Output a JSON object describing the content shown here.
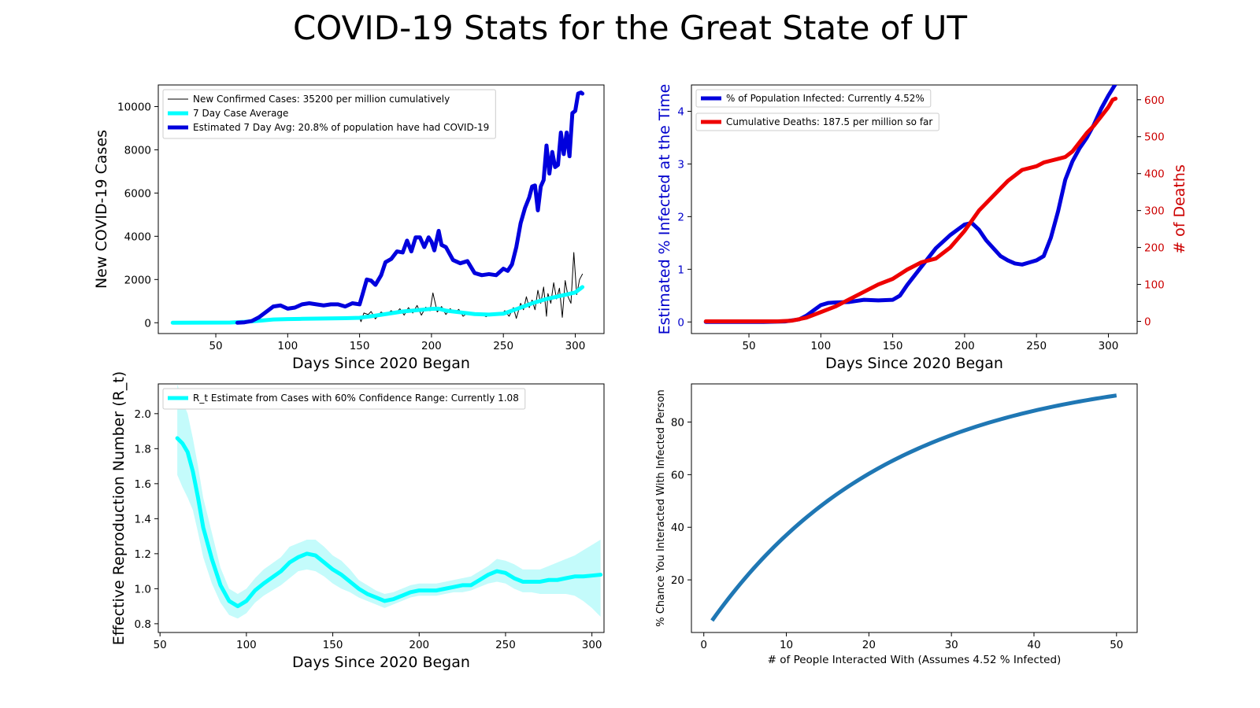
{
  "title": "COVID-19 Stats for the Great State of UT",
  "colors": {
    "blue": "#0000dd",
    "cyan": "#00ffff",
    "cyan_band": "#c4fbfb",
    "red": "#ee0000",
    "steel": "#1f77b4",
    "black": "#000000",
    "axis_blue": "#0000cc",
    "axis_red": "#cc0000"
  },
  "chart_data": [
    {
      "id": "cases",
      "type": "line",
      "xlabel": "Days Since 2020 Began",
      "ylabel": "New COVID-19 Cases",
      "xlim": [
        10,
        320
      ],
      "ylim": [
        -500,
        11000
      ],
      "xticks": [
        50,
        100,
        150,
        200,
        250,
        300
      ],
      "yticks": [
        0,
        2000,
        4000,
        6000,
        8000,
        10000
      ],
      "legend_position": "upper-left",
      "series": [
        {
          "name": "New Confirmed Cases: 35200 per million cumulatively",
          "color": "#000000",
          "width": 1,
          "x": [
            20,
            60,
            70,
            80,
            90,
            100,
            110,
            120,
            130,
            140,
            150,
            151,
            153,
            156,
            158,
            161,
            165,
            168,
            172,
            175,
            178,
            181,
            184,
            187,
            190,
            193,
            196,
            199,
            201,
            204,
            207,
            210,
            213,
            216,
            219,
            222,
            226,
            230,
            234,
            238,
            242,
            246,
            249,
            251,
            254,
            257,
            259,
            262,
            264,
            266,
            268,
            270,
            272,
            274,
            276,
            278,
            280,
            281,
            283,
            285,
            287,
            289,
            291,
            293,
            295,
            297,
            299,
            301,
            303,
            305
          ],
          "y": [
            0,
            10,
            40,
            90,
            150,
            180,
            190,
            200,
            210,
            220,
            230,
            50,
            450,
            380,
            520,
            180,
            500,
            350,
            560,
            420,
            650,
            350,
            700,
            450,
            800,
            350,
            720,
            550,
            1380,
            500,
            750,
            380,
            650,
            450,
            620,
            300,
            500,
            380,
            430,
            280,
            450,
            350,
            400,
            560,
            300,
            700,
            200,
            900,
            600,
            1200,
            700,
            1050,
            600,
            1500,
            900,
            1650,
            300,
            1350,
            900,
            1850,
            1100,
            1600,
            250,
            1950,
            1200,
            900,
            3250,
            1300,
            2000,
            2250
          ]
        },
        {
          "name": "7 Day Case Average",
          "color": "#00ffff",
          "width": 5,
          "x": [
            20,
            60,
            70,
            80,
            90,
            100,
            110,
            120,
            130,
            140,
            150,
            160,
            170,
            180,
            190,
            200,
            205,
            210,
            220,
            230,
            240,
            250,
            260,
            270,
            280,
            290,
            300,
            305
          ],
          "y": [
            0,
            10,
            40,
            90,
            150,
            170,
            180,
            190,
            200,
            210,
            230,
            320,
            420,
            520,
            580,
            640,
            650,
            560,
            480,
            400,
            380,
            420,
            650,
            900,
            1100,
            1250,
            1400,
            1650
          ]
        },
        {
          "name": "Estimated 7 Day Avg: 20.8% of population have had COVID-19",
          "color": "#0000dd",
          "width": 5,
          "x": [
            65,
            70,
            75,
            80,
            85,
            90,
            95,
            100,
            105,
            110,
            115,
            120,
            125,
            130,
            135,
            140,
            145,
            150,
            152,
            155,
            158,
            161,
            165,
            168,
            172,
            176,
            180,
            183,
            186,
            189,
            192,
            195,
            198,
            200,
            202,
            205,
            207,
            210,
            215,
            220,
            225,
            230,
            235,
            240,
            245,
            250,
            253,
            256,
            259,
            262,
            265,
            268,
            270,
            272,
            274,
            276,
            278,
            280,
            282,
            284,
            286,
            288,
            290,
            292,
            294,
            296,
            298,
            300,
            302,
            304,
            305
          ],
          "y": [
            0,
            20,
            80,
            250,
            500,
            750,
            800,
            650,
            700,
            850,
            900,
            850,
            800,
            850,
            850,
            750,
            900,
            850,
            1300,
            2000,
            1950,
            1750,
            2200,
            2800,
            2950,
            3300,
            3250,
            3800,
            3300,
            3950,
            3950,
            3500,
            3950,
            3750,
            3350,
            4250,
            3600,
            3500,
            2900,
            2750,
            2850,
            2300,
            2200,
            2250,
            2200,
            2500,
            2400,
            2700,
            3500,
            4600,
            5300,
            5800,
            6300,
            6350,
            5200,
            6300,
            6600,
            8200,
            6900,
            7900,
            7200,
            7300,
            8800,
            7800,
            8800,
            7700,
            9700,
            9800,
            10600,
            10650,
            10600
          ]
        }
      ]
    },
    {
      "id": "infected",
      "type": "line",
      "xlabel": "Days Since 2020 Began",
      "ylabel": "Estimated % Infected at the Time",
      "ylabel_right": "# of Deaths",
      "xlim": [
        10,
        320
      ],
      "ylim": [
        -0.22,
        4.5
      ],
      "ylim_right": [
        -33,
        640
      ],
      "xticks": [
        50,
        100,
        150,
        200,
        250,
        300
      ],
      "yticks": [
        0,
        1,
        2,
        3,
        4
      ],
      "yticks_right": [
        0,
        100,
        200,
        300,
        400,
        500,
        600
      ],
      "legend_position": "upper-left",
      "series": [
        {
          "name": "% of Population Infected: Currently 4.52%",
          "axis": "left",
          "color": "#0000dd",
          "width": 5,
          "x": [
            20,
            60,
            75,
            85,
            90,
            95,
            100,
            105,
            110,
            120,
            130,
            140,
            150,
            155,
            160,
            170,
            180,
            190,
            200,
            205,
            210,
            215,
            220,
            225,
            230,
            235,
            240,
            245,
            250,
            255,
            260,
            265,
            270,
            275,
            280,
            285,
            290,
            295,
            300,
            305
          ],
          "y": [
            0,
            0,
            0.01,
            0.05,
            0.12,
            0.22,
            0.32,
            0.36,
            0.37,
            0.38,
            0.42,
            0.41,
            0.42,
            0.5,
            0.7,
            1.05,
            1.4,
            1.65,
            1.85,
            1.88,
            1.75,
            1.55,
            1.4,
            1.25,
            1.17,
            1.11,
            1.09,
            1.13,
            1.17,
            1.25,
            1.6,
            2.1,
            2.7,
            3.05,
            3.3,
            3.5,
            3.75,
            4.05,
            4.3,
            4.52
          ]
        },
        {
          "name": "Cumulative Deaths: 187.5 per million so far",
          "axis": "right",
          "color": "#ee0000",
          "width": 5,
          "x": [
            20,
            60,
            70,
            80,
            90,
            100,
            110,
            120,
            130,
            140,
            150,
            160,
            170,
            180,
            190,
            200,
            210,
            220,
            230,
            240,
            250,
            255,
            260,
            265,
            270,
            275,
            280,
            285,
            290,
            295,
            300,
            303,
            305
          ],
          "y": [
            0,
            0,
            0,
            2,
            10,
            25,
            40,
            60,
            80,
            100,
            115,
            140,
            160,
            170,
            200,
            245,
            300,
            340,
            380,
            410,
            420,
            430,
            435,
            440,
            445,
            460,
            485,
            510,
            530,
            555,
            580,
            600,
            603
          ]
        }
      ]
    },
    {
      "id": "rt",
      "type": "line",
      "xlabel": "Days Since 2020 Began",
      "ylabel": "Effective Reproduction Number (R_t)",
      "xlim": [
        49,
        307
      ],
      "ylim": [
        0.75,
        2.17
      ],
      "xticks": [
        50,
        100,
        150,
        200,
        250,
        300
      ],
      "yticks": [
        0.8,
        1.0,
        1.2,
        1.4,
        1.6,
        1.8,
        2.0
      ],
      "legend_position": "upper-left",
      "series": [
        {
          "name": "R_t Estimate from Cases with 60% Confidence Range: Currently 1.08",
          "color": "#00ffff",
          "width": 5,
          "x": [
            60,
            63,
            66,
            69,
            72,
            75,
            80,
            85,
            90,
            95,
            100,
            105,
            110,
            120,
            125,
            130,
            135,
            140,
            145,
            150,
            155,
            160,
            165,
            170,
            175,
            180,
            185,
            190,
            195,
            200,
            205,
            210,
            215,
            220,
            225,
            230,
            235,
            240,
            245,
            250,
            255,
            260,
            265,
            270,
            275,
            280,
            285,
            290,
            295,
            300,
            305
          ],
          "y": [
            1.86,
            1.83,
            1.78,
            1.67,
            1.52,
            1.35,
            1.17,
            1.02,
            0.93,
            0.9,
            0.93,
            0.99,
            1.03,
            1.1,
            1.15,
            1.18,
            1.2,
            1.19,
            1.15,
            1.11,
            1.08,
            1.04,
            1.0,
            0.97,
            0.95,
            0.93,
            0.94,
            0.96,
            0.98,
            0.99,
            0.99,
            0.99,
            1.0,
            1.01,
            1.02,
            1.02,
            1.05,
            1.08,
            1.1,
            1.09,
            1.06,
            1.04,
            1.04,
            1.04,
            1.05,
            1.05,
            1.06,
            1.07,
            1.07,
            1.075,
            1.08
          ],
          "lower": [
            1.65,
            1.58,
            1.52,
            1.45,
            1.32,
            1.18,
            1.03,
            0.92,
            0.85,
            0.83,
            0.86,
            0.92,
            0.96,
            1.02,
            1.06,
            1.1,
            1.11,
            1.1,
            1.07,
            1.03,
            1.0,
            0.98,
            0.95,
            0.93,
            0.91,
            0.89,
            0.91,
            0.93,
            0.95,
            0.96,
            0.96,
            0.96,
            0.97,
            0.98,
            0.98,
            0.99,
            1.01,
            1.03,
            1.04,
            1.03,
            1.0,
            0.98,
            0.98,
            0.97,
            0.97,
            0.97,
            0.97,
            0.96,
            0.93,
            0.89,
            0.84
          ],
          "upper": [
            2.17,
            2.07,
            2.0,
            1.86,
            1.7,
            1.52,
            1.32,
            1.12,
            1.0,
            0.97,
            1.0,
            1.06,
            1.11,
            1.18,
            1.24,
            1.26,
            1.28,
            1.28,
            1.24,
            1.19,
            1.16,
            1.11,
            1.05,
            1.02,
            0.99,
            0.97,
            0.98,
            1.0,
            1.02,
            1.03,
            1.03,
            1.03,
            1.04,
            1.05,
            1.06,
            1.07,
            1.1,
            1.13,
            1.17,
            1.16,
            1.14,
            1.11,
            1.11,
            1.11,
            1.13,
            1.15,
            1.17,
            1.19,
            1.22,
            1.25,
            1.28
          ]
        }
      ]
    },
    {
      "id": "chance",
      "type": "line",
      "xlabel": "# of People Interacted With (Assumes 4.52 % Infected)",
      "ylabel": "% Chance You Interacted With Infected Person",
      "xlim": [
        -1.5,
        52.5
      ],
      "ylim": [
        0,
        94.5
      ],
      "xticks": [
        0,
        10,
        20,
        30,
        40,
        50
      ],
      "yticks": [
        20,
        40,
        60,
        80
      ],
      "formula": "100*(1-(1-0.0452)^n) for n from 1 to 50",
      "series": [
        {
          "color": "#1f77b4",
          "width": 5,
          "rate": 0.0452,
          "n_min": 1,
          "n_max": 50
        }
      ]
    }
  ]
}
